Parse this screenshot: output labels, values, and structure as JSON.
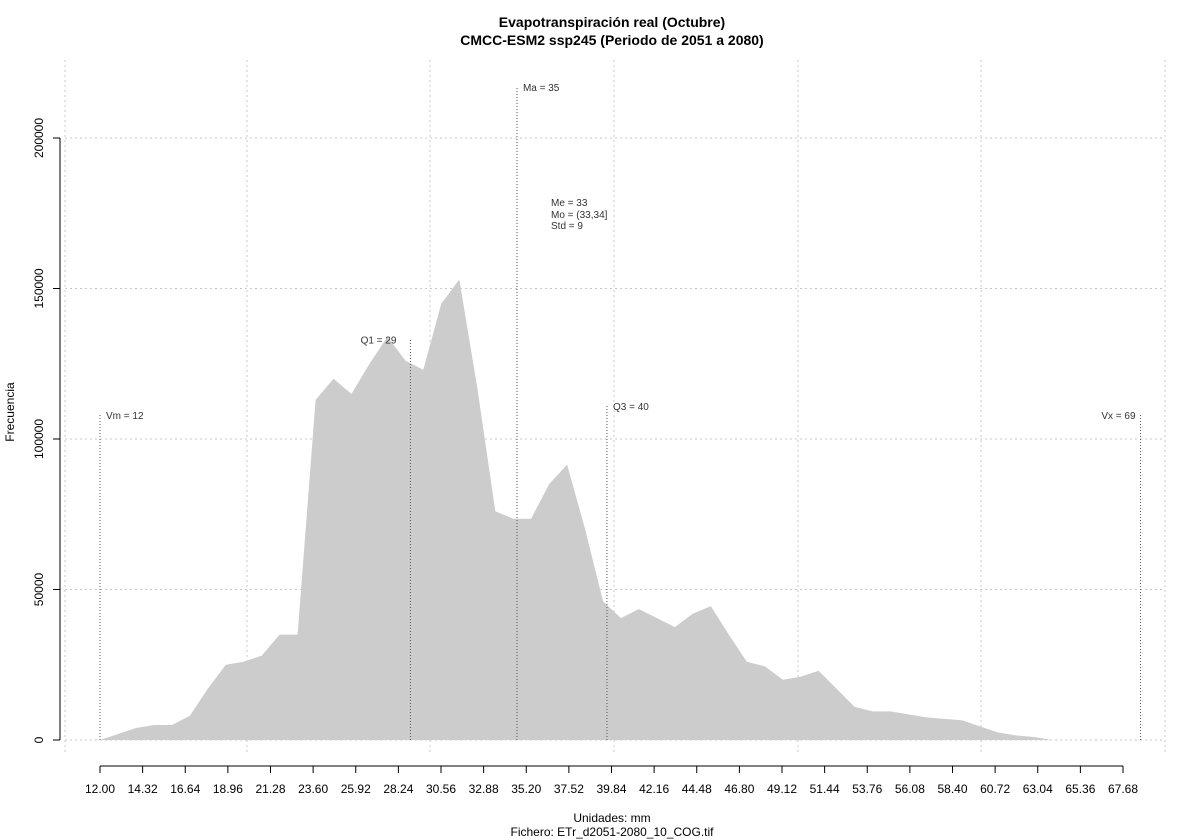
{
  "chart_data": {
    "type": "area",
    "title": "Evapotranspiración real (Octubre)",
    "subtitle": "CMCC-ESM2 ssp245 (Periodo de 2051 a 2080)",
    "xlabel": "Unidades: mm",
    "file_label": "Fichero: ETr_d2051-2080_10_COG.tif",
    "ylabel": "Frecuencia",
    "xlim": [
      12,
      69
    ],
    "ylim": [
      0,
      200000
    ],
    "x_tick_labels": [
      "12.00",
      "14.32",
      "16.64",
      "18.96",
      "21.28",
      "23.60",
      "25.92",
      "28.24",
      "30.56",
      "32.88",
      "35.20",
      "37.52",
      "39.84",
      "42.16",
      "44.48",
      "46.80",
      "49.12",
      "51.44",
      "53.76",
      "56.08",
      "58.40",
      "60.72",
      "63.04",
      "65.36",
      "67.68"
    ],
    "y_tick_labels": [
      "0",
      "50000",
      "100000",
      "150000",
      "200000"
    ],
    "y_ticks": [
      0,
      50000,
      100000,
      150000,
      200000
    ],
    "grid": true,
    "fill_color": "#cccccc",
    "x": [
      12.0,
      12.98,
      13.96,
      14.93,
      15.91,
      16.89,
      17.87,
      18.85,
      19.82,
      20.8,
      21.78,
      22.76,
      23.74,
      24.71,
      25.69,
      26.67,
      27.65,
      28.63,
      29.6,
      30.58,
      31.56,
      32.54,
      33.52,
      34.5,
      35.47,
      36.45,
      37.43,
      38.41,
      39.39,
      40.36,
      41.34,
      42.32,
      43.3,
      44.28,
      45.25,
      46.23,
      47.21,
      48.19,
      49.17,
      50.14,
      51.12,
      52.1,
      53.08,
      54.06,
      55.03,
      56.01,
      56.99,
      57.97,
      58.95,
      59.92,
      60.9,
      61.88,
      62.86,
      63.84,
      64.81,
      65.79,
      66.77,
      67.75,
      68.73
    ],
    "values": [
      0,
      2000,
      4000,
      5000,
      5000,
      8000,
      17000,
      25000,
      26000,
      28000,
      35000,
      35000,
      113000,
      120000,
      115000,
      125000,
      134000,
      126000,
      123000,
      145000,
      153000,
      117000,
      76000,
      73500,
      73500,
      85000,
      91500,
      70000,
      46000,
      40500,
      43500,
      40500,
      37500,
      42000,
      44500,
      35000,
      26000,
      24500,
      20000,
      21000,
      23000,
      17000,
      11000,
      9500,
      9500,
      8500,
      7500,
      7000,
      6500,
      4500,
      2500,
      1500,
      1000,
      0,
      0,
      0,
      0,
      0,
      0
    ],
    "annotations": [
      {
        "label": "Vm = 12",
        "x": 12.0,
        "y": 108000
      },
      {
        "label": "Q1 = 29",
        "x": 28.9,
        "y": 133000
      },
      {
        "label": "Ma = 35",
        "x": 34.7,
        "y": 217000
      },
      {
        "label": "Q3 = 40",
        "x": 39.6,
        "y": 111000
      },
      {
        "label": "Vx = 69",
        "x": 68.65,
        "y": 108000
      }
    ],
    "stats_labels": [
      "Me = 33",
      "Mo = (33,34]",
      "Std = 9"
    ]
  }
}
